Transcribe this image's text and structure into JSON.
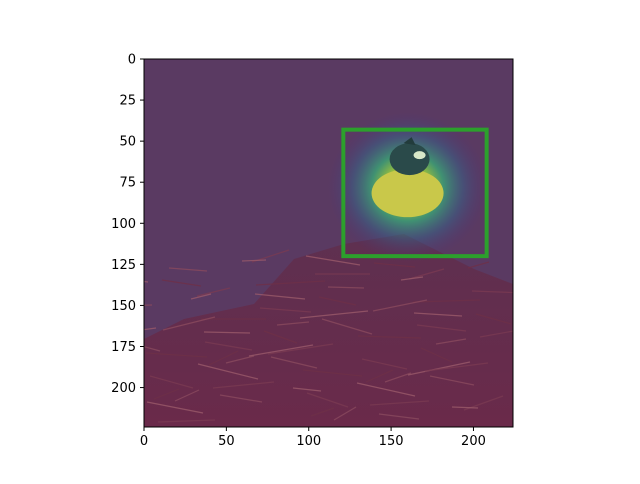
{
  "chart_data": {
    "type": "heatmap",
    "title": "",
    "xlabel": "",
    "ylabel": "",
    "xlim": [
      0,
      224
    ],
    "ylim": [
      224,
      0
    ],
    "x_ticks": [
      0,
      50,
      100,
      150,
      200
    ],
    "y_ticks": [
      0,
      25,
      50,
      75,
      100,
      125,
      150,
      175,
      200
    ],
    "grid": false,
    "image_description_layers": [
      "photo of a bird on a nest of twigs",
      "attention heatmap overlay (viridis-like, purple low, yellow high)"
    ],
    "heat_peak": {
      "x": 160,
      "y": 78,
      "value": 1.0
    },
    "bounding_box": {
      "x0": 121,
      "y0": 43,
      "x1": 208,
      "y1": 120,
      "color": "#2ca02c"
    }
  }
}
